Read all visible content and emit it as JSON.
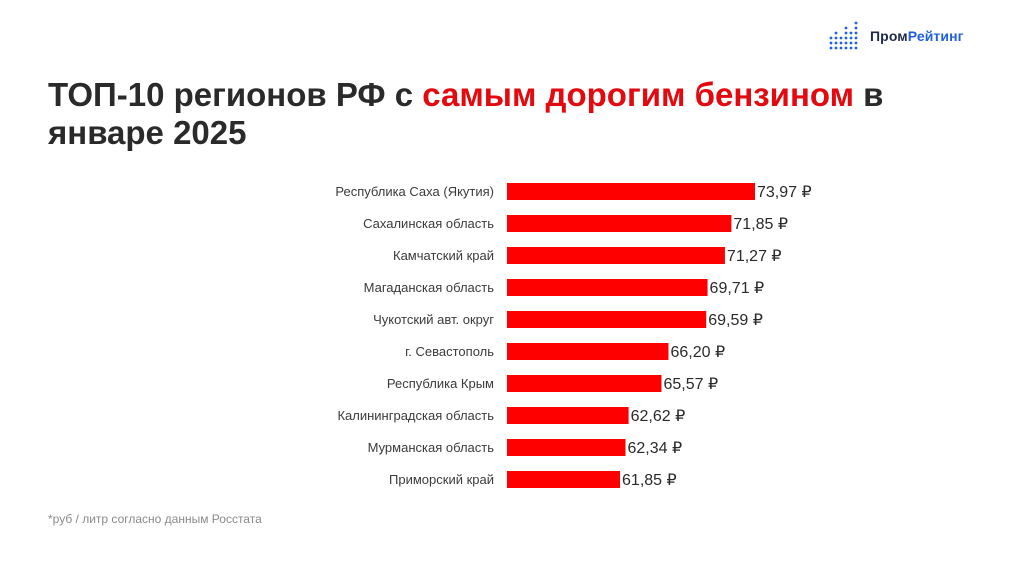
{
  "brand": {
    "name_part1": "Пром",
    "name_part2": "Рейтинг",
    "color_dark": "#1f2a44",
    "color_blue": "#1f5fe0"
  },
  "title": {
    "part1": "ТОП-10 регионов РФ с ",
    "accent": "самым дорогим бензином",
    "part2": " в январе 2025",
    "accent_color": "#e3090f"
  },
  "footnote": "*руб / литр согласно данным Росстата",
  "chart_data": {
    "type": "bar",
    "orientation": "horizontal",
    "categories": [
      "Республика Саха (Якутия)",
      "Сахалинская область",
      "Камчатский край",
      "Магаданская область",
      "Чукотский авт. округ",
      "г. Севастополь",
      "Республика Крым",
      "Калининградская область",
      "Мурманская область",
      "Приморский край"
    ],
    "values": [
      73.97,
      71.85,
      71.27,
      69.71,
      69.59,
      66.2,
      65.57,
      62.62,
      62.34,
      61.85
    ],
    "value_labels": [
      "73,97 ₽",
      "71,85 ₽",
      "71,27 ₽",
      "69,71 ₽",
      "69,59 ₽",
      "66,20 ₽",
      "65,57 ₽",
      "62,62 ₽",
      "62,34 ₽",
      "61,85 ₽"
    ],
    "xlim": [
      51.7,
      73.97
    ],
    "bar_color": "#ff0000",
    "grid": false
  }
}
